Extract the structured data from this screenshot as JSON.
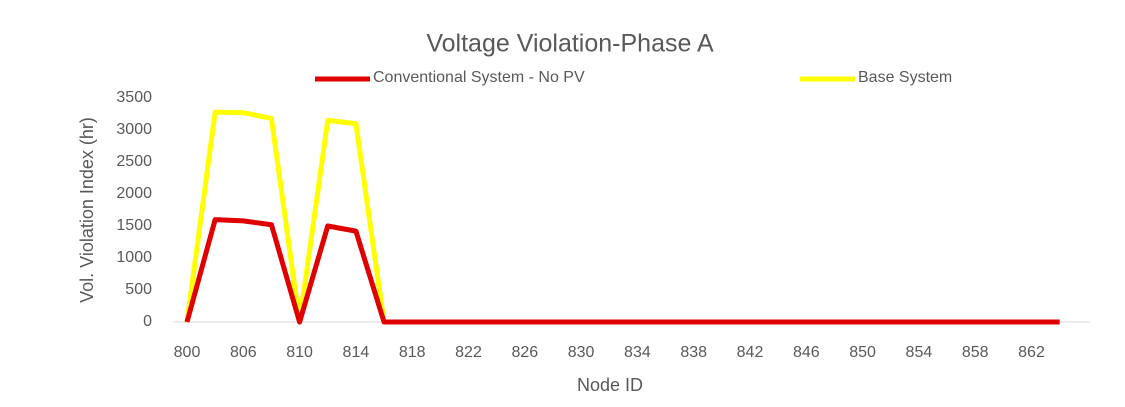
{
  "chart_data": {
    "type": "line",
    "title": "Voltage Violation-Phase A",
    "x_label": "Node ID",
    "y_label": "Vol. Violation Index (hr)",
    "categories": [
      800,
      null,
      806,
      null,
      810,
      null,
      814,
      null,
      818,
      null,
      822,
      null,
      826,
      null,
      830,
      null,
      834,
      null,
      838,
      null,
      842,
      null,
      846,
      null,
      850,
      null,
      854,
      null,
      858,
      null,
      862,
      null
    ],
    "series": [
      {
        "name": "Conventional System - No PV",
        "color": "#e00000",
        "values": [
          0,
          1600,
          1580,
          1520,
          0,
          1500,
          1420,
          0,
          0,
          0,
          0,
          0,
          0,
          0,
          0,
          0,
          0,
          0,
          0,
          0,
          0,
          0,
          0,
          0,
          0,
          0,
          0,
          0,
          0,
          0,
          0,
          0
        ]
      },
      {
        "name": "Base System",
        "color": "#ffff00",
        "values": [
          0,
          3280,
          3270,
          3180,
          0,
          3150,
          3100,
          0,
          0,
          0,
          0,
          0,
          0,
          0,
          0,
          0,
          0,
          0,
          0,
          0,
          0,
          0,
          0,
          0,
          0,
          0,
          0,
          0,
          0,
          0,
          0,
          0
        ]
      }
    ],
    "ylim": [
      0,
      3500
    ],
    "yticks": [
      0,
      500,
      1000,
      1500,
      2000,
      2500,
      3000,
      3500
    ],
    "grid": false,
    "legend": "top"
  }
}
